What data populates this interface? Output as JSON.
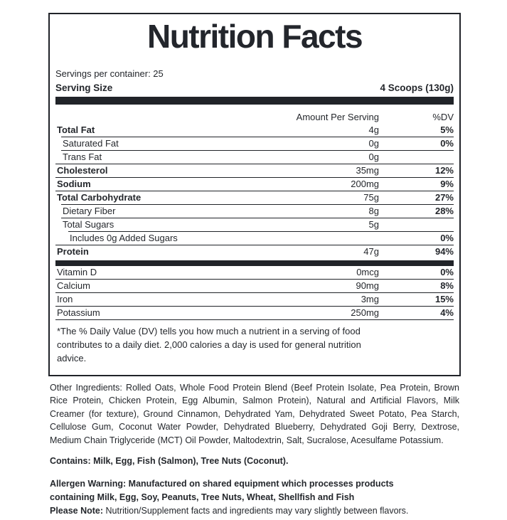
{
  "label": {
    "title": "Nutrition Facts",
    "servings_per_container": "Servings per container: 25",
    "serving_size_label": "Serving Size",
    "serving_size_value": "4 Scoops (130g)",
    "header": {
      "amount": "Amount Per Serving",
      "dv": "%DV"
    },
    "rows": [
      {
        "name": "Total Fat",
        "amount": "4g",
        "dv": "5%",
        "bold": true,
        "indent": 0
      },
      {
        "name": "Saturated Fat",
        "amount": "0g",
        "dv": "0%",
        "bold": false,
        "indent": 1
      },
      {
        "name": "Trans Fat",
        "amount": "0g",
        "dv": "",
        "bold": false,
        "indent": 1
      },
      {
        "name": "Cholesterol",
        "amount": "35mg",
        "dv": "12%",
        "bold": true,
        "indent": 0
      },
      {
        "name": "Sodium",
        "amount": "200mg",
        "dv": "9%",
        "bold": true,
        "indent": 0
      },
      {
        "name": "Total Carbohydrate",
        "amount": "75g",
        "dv": "27%",
        "bold": true,
        "indent": 0
      },
      {
        "name": "Dietary Fiber",
        "amount": "8g",
        "dv": "28%",
        "bold": false,
        "indent": 1
      },
      {
        "name": "Total Sugars",
        "amount": "5g",
        "dv": "",
        "bold": false,
        "indent": 1
      },
      {
        "name": "Includes 0g Added Sugars",
        "amount": "",
        "dv": "0%",
        "bold": false,
        "indent": 2
      },
      {
        "name": "Protein",
        "amount": "47g",
        "dv": "94%",
        "bold": true,
        "indent": 0
      }
    ],
    "vitamin_rows": [
      {
        "name": "Vitamin D",
        "amount": "0mcg",
        "dv": "0%",
        "bold": false,
        "indent": 0
      },
      {
        "name": "Calcium",
        "amount": "90mg",
        "dv": "8%",
        "bold": false,
        "indent": 0
      },
      {
        "name": "Iron",
        "amount": "3mg",
        "dv": "15%",
        "bold": false,
        "indent": 0
      },
      {
        "name": "Potassium",
        "amount": "250mg",
        "dv": "4%",
        "bold": false,
        "indent": 0
      }
    ],
    "footnote": "*The % Daily Value (DV) tells you how much a nutrient in a serving of food contributes to a daily diet. 2,000 calories a day is used for general nutrition advice."
  },
  "below": {
    "other_ingredients": "Other Ingredients: Rolled Oats, Whole Food Protein Blend (Beef Protein Isolate, Pea Protein, Brown Rice Protein, Chicken Protein, Egg Albumin, Salmon Protein), Natural and Artificial Flavors, Milk Creamer (for texture), Ground Cinnamon, Dehydrated Yam, Dehydrated Sweet Potato, Pea Starch, Cellulose Gum, Coconut Water Powder, Dehydrated Blueberry, Dehydrated Goji Berry, Dextrose, Medium Chain Triglyceride (MCT) Oil Powder, Maltodextrin, Salt, Sucralose, Acesulfame Potassium.",
    "contains": "Contains: Milk, Egg, Fish (Salmon), Tree Nuts (Coconut).",
    "allergen_warning": "Allergen Warning: Manufactured on shared equipment which processes products containing Milk, Egg, Soy, Peanuts, Tree Nuts, Wheat, Shellfish and Fish",
    "please_note_label": "Please Note:",
    "please_note_text": " Nutrition/Supplement facts and ingredients may vary slightly between flavors."
  },
  "colors": {
    "text": "#24272c",
    "bar": "#212429",
    "border": "#202329",
    "background": "#ffffff"
  }
}
